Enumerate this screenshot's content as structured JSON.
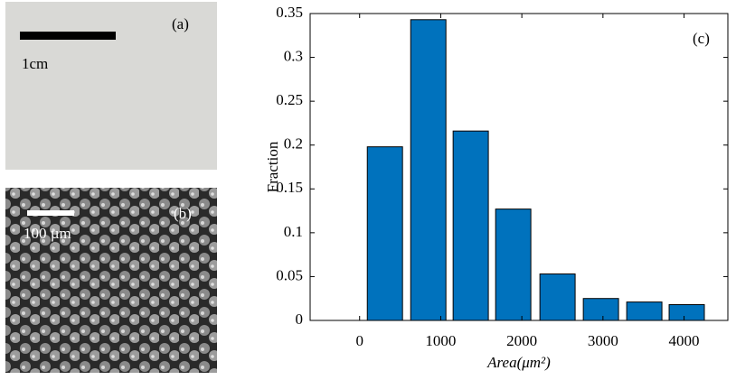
{
  "panels": {
    "a": {
      "label": "(a)",
      "scale_label": "1cm"
    },
    "b": {
      "label": "(b)",
      "scale_label": "100 µm"
    }
  },
  "chart_data": {
    "type": "bar",
    "annotation": "(c)",
    "ylabel": "Fraction",
    "xlabel": "Area(μm²)",
    "x": [
      312,
      847,
      1370,
      1894,
      2440,
      2975,
      3510,
      4033
    ],
    "values": [
      0.198,
      0.343,
      0.216,
      0.127,
      0.053,
      0.025,
      0.021,
      0.018
    ],
    "color": "#0072bd",
    "xlim": [
      -610,
      4540
    ],
    "xticks": [
      0,
      1000,
      2000,
      3000,
      4000
    ],
    "ylim": [
      0,
      0.35
    ],
    "yticks": [
      0,
      0.05,
      0.1,
      0.15,
      0.2,
      0.25,
      0.3,
      0.35
    ]
  }
}
